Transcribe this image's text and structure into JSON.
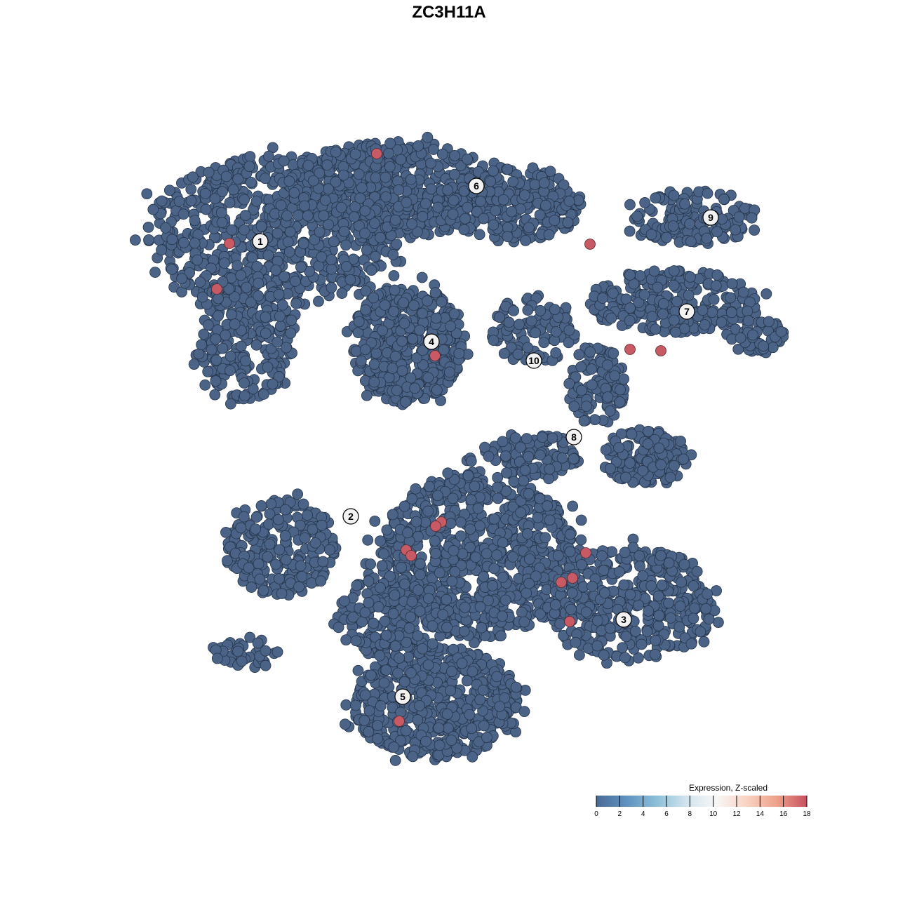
{
  "chart_data": {
    "type": "scatter",
    "title": "ZC3H11A",
    "xlabel": "",
    "ylabel": "",
    "grid": false,
    "axes_visible": false,
    "point_color_default": "#4a6387",
    "point_color_high": "#c75a64",
    "cluster_labels": [
      {
        "label": "1",
        "x": -26.9,
        "y": 29.6
      },
      {
        "label": "2",
        "x": -14.0,
        "y": -9.6
      },
      {
        "label": "3",
        "x": 24.9,
        "y": -24.3
      },
      {
        "label": "4",
        "x": -2.5,
        "y": 15.3
      },
      {
        "label": "5",
        "x": -6.6,
        "y": -35.3
      },
      {
        "label": "6",
        "x": 3.9,
        "y": 37.5
      },
      {
        "label": "7",
        "x": 33.9,
        "y": 19.6
      },
      {
        "label": "8",
        "x": 17.8,
        "y": 1.7
      },
      {
        "label": "9",
        "x": 37.3,
        "y": 33.0
      },
      {
        "label": "10",
        "x": 12.1,
        "y": 12.6
      }
    ],
    "high_expression_points": [
      {
        "x": -10.3,
        "y": 42.1,
        "value": 18
      },
      {
        "x": -31.3,
        "y": 29.3,
        "value": 18
      },
      {
        "x": -33.1,
        "y": 22.8,
        "value": 18
      },
      {
        "x": 20.1,
        "y": 29.2,
        "value": 18
      },
      {
        "x": -2.0,
        "y": 13.3,
        "value": 18
      },
      {
        "x": 25.8,
        "y": 14.2,
        "value": 18
      },
      {
        "x": 30.2,
        "y": 14.0,
        "value": 18
      },
      {
        "x": -1.1,
        "y": -10.4,
        "value": 18
      },
      {
        "x": -1.9,
        "y": -11.0,
        "value": 18
      },
      {
        "x": -6.1,
        "y": -14.4,
        "value": 18
      },
      {
        "x": -5.4,
        "y": -15.2,
        "value": 18
      },
      {
        "x": 19.5,
        "y": -14.8,
        "value": 18
      },
      {
        "x": 17.6,
        "y": -18.4,
        "value": 18
      },
      {
        "x": 16.0,
        "y": -19.0,
        "value": 18
      },
      {
        "x": 17.2,
        "y": -24.6,
        "value": 18
      },
      {
        "x": -7.1,
        "y": -38.8,
        "value": 18
      }
    ],
    "background_value": 0,
    "legend": {
      "title": "Expression, Z-scaled",
      "placement": "bottom-right",
      "ticks": [
        "0",
        "2",
        "4",
        "6",
        "8",
        "10",
        "12",
        "14",
        "16",
        "18"
      ],
      "range": [
        0,
        18
      ],
      "colors": [
        "#4a6a95",
        "#5f92c0",
        "#8cbfd9",
        "#d2e4ee",
        "#f7f7f7",
        "#f9d3c2",
        "#eea18a",
        "#c7505e"
      ]
    }
  }
}
